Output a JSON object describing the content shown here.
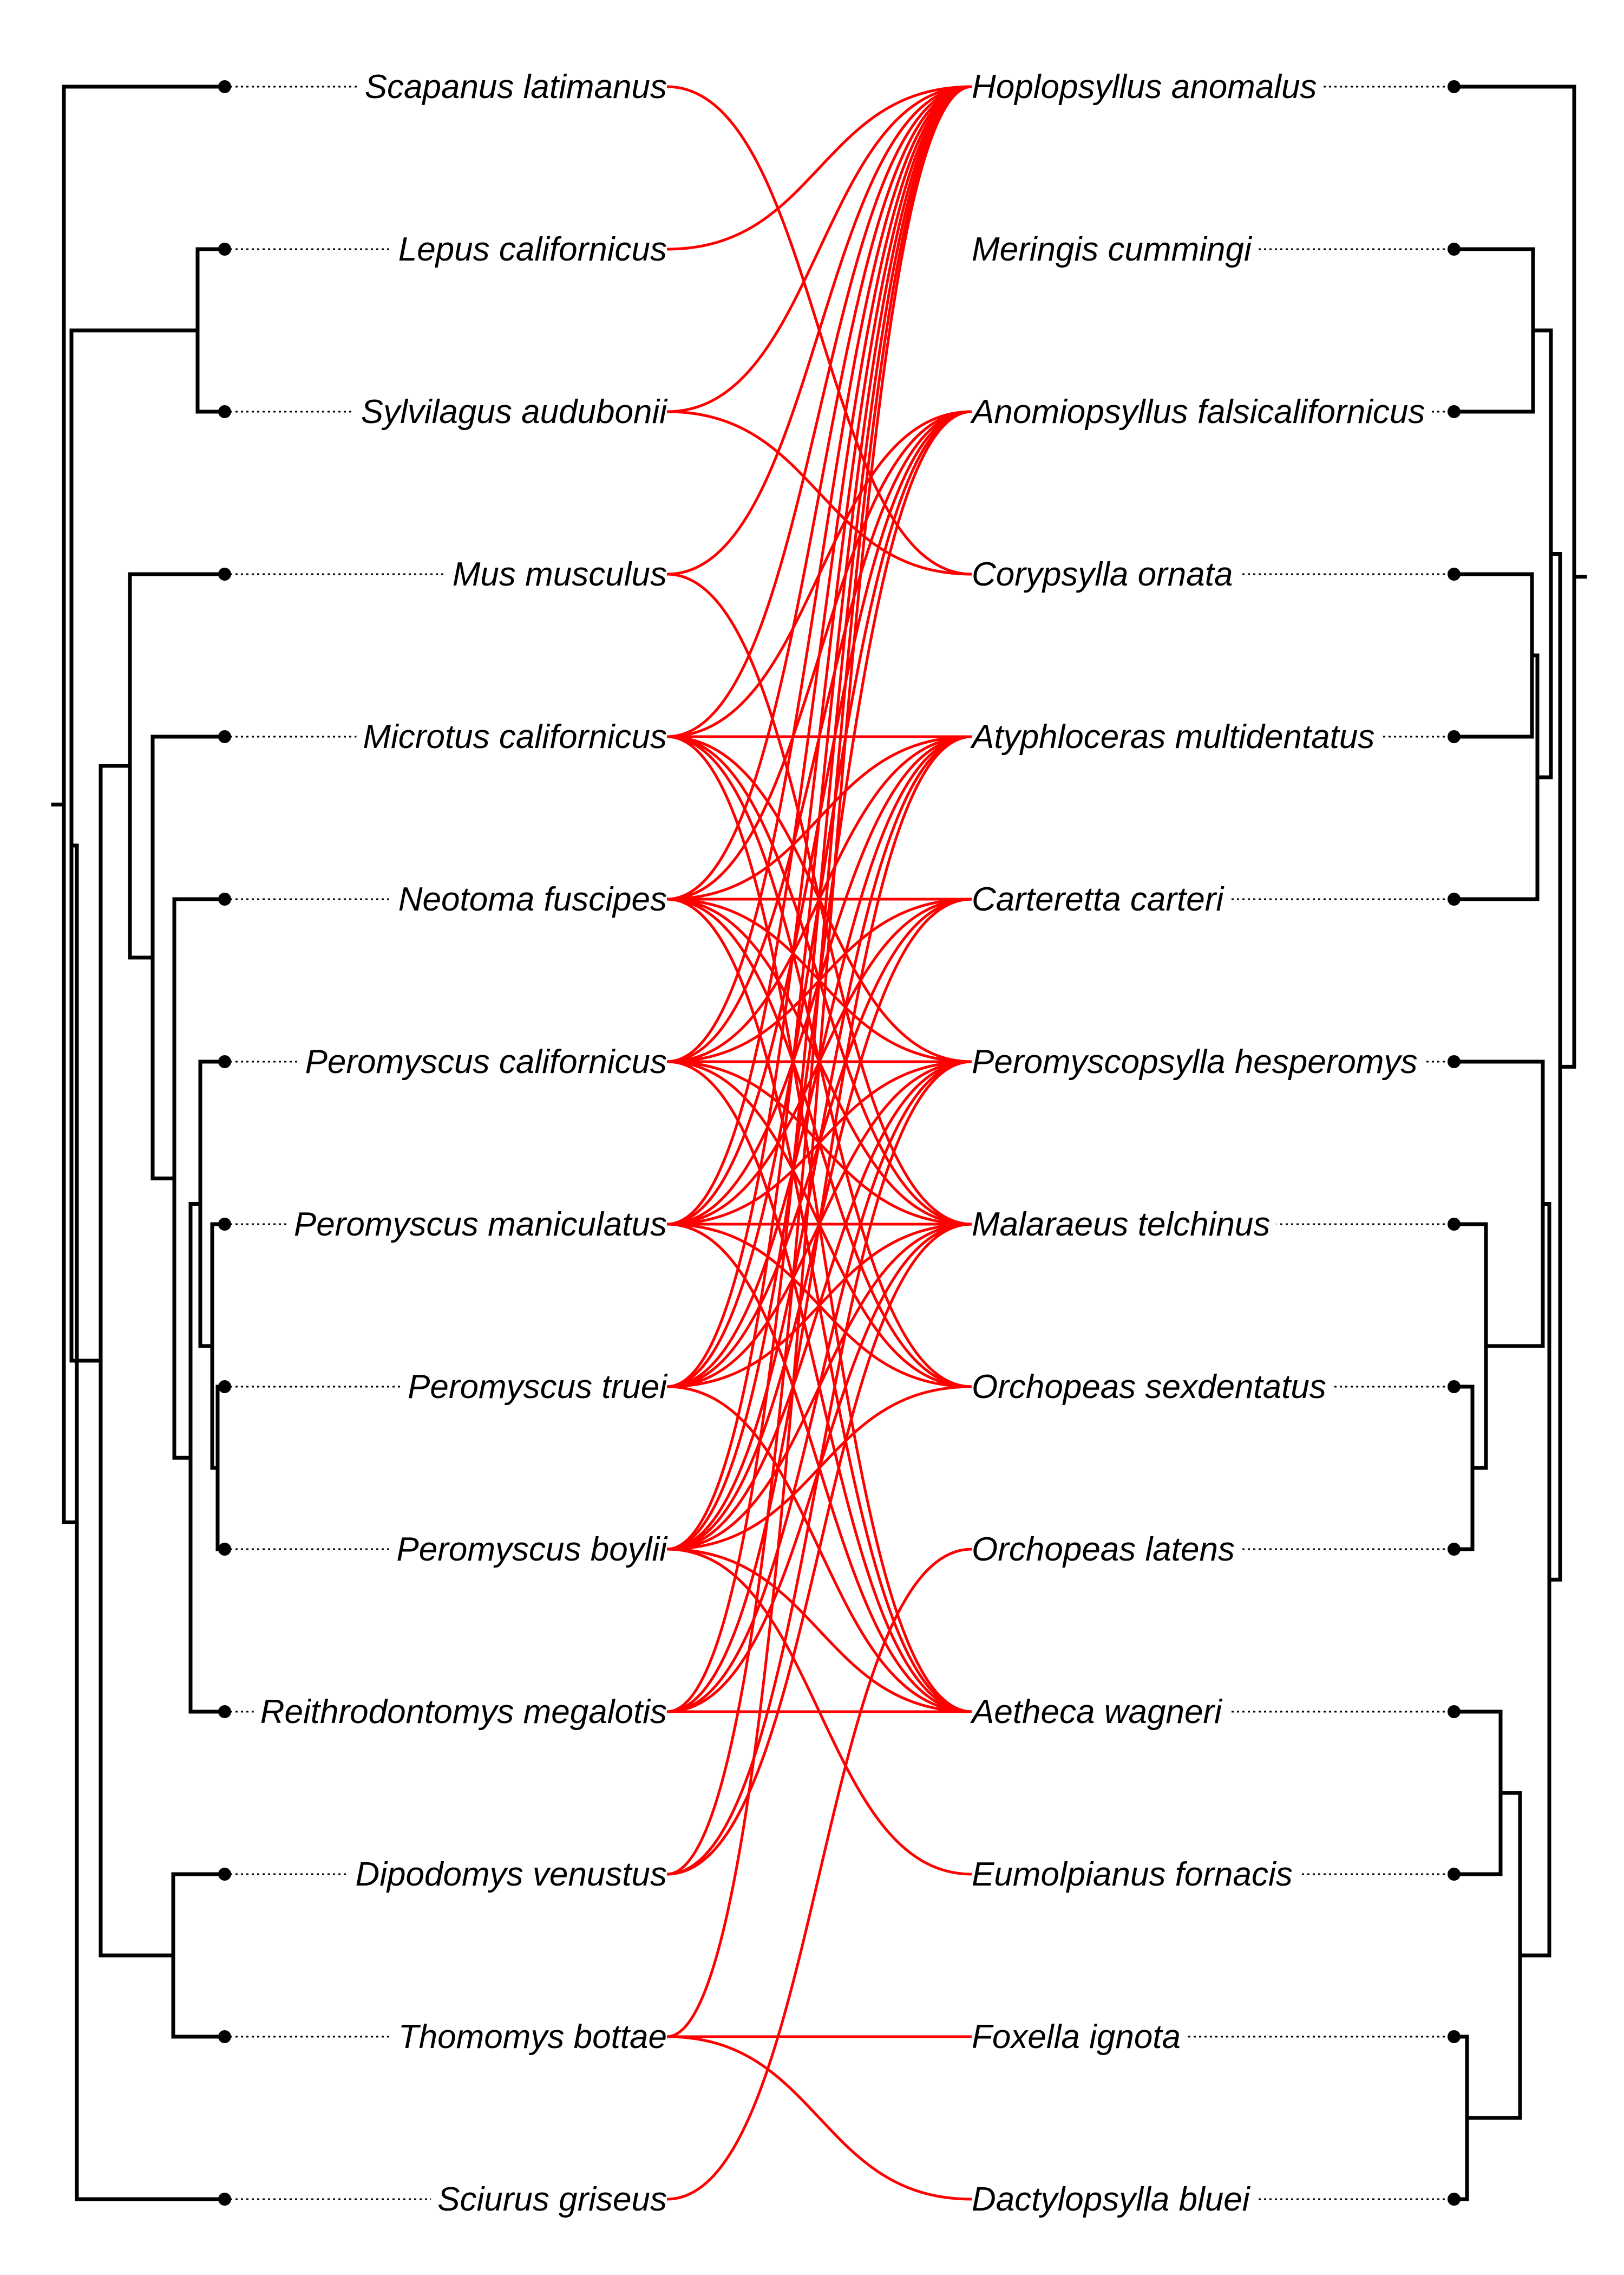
{
  "colors": {
    "link": "#ff0000",
    "tree": "#000000",
    "background": "#ffffff"
  },
  "hosts": [
    "Scapanus latimanus",
    "Lepus californicus",
    "Sylvilagus audubonii",
    "Mus musculus",
    "Microtus californicus",
    "Neotoma fuscipes",
    "Peromyscus californicus",
    "Peromyscus maniculatus",
    "Peromyscus truei",
    "Peromyscus boylii",
    "Reithrodontomys megalotis",
    "Dipodomys venustus",
    "Thomomys bottae",
    "Sciurus griseus"
  ],
  "parasites": [
    "Hoplopsyllus anomalus",
    "Meringis cummingi",
    "Anomiopsyllus falsicalifornicus",
    "Corypsylla ornata",
    "Atyphloceras multidentatus",
    "Carteretta carteri",
    "Peromyscopsylla hesperomys",
    "Malaraeus telchinus",
    "Orchopeas sexdentatus",
    "Orchopeas latens",
    "Aetheca wagneri",
    "Eumolpianus fornacis",
    "Foxella ignota",
    "Dactylopsylla bluei"
  ],
  "associations": [
    [
      0,
      3
    ],
    [
      1,
      0
    ],
    [
      2,
      0
    ],
    [
      2,
      3
    ],
    [
      3,
      0
    ],
    [
      3,
      7
    ],
    [
      4,
      0
    ],
    [
      4,
      2
    ],
    [
      4,
      4
    ],
    [
      4,
      6
    ],
    [
      4,
      7
    ],
    [
      4,
      8
    ],
    [
      4,
      10
    ],
    [
      5,
      0
    ],
    [
      5,
      2
    ],
    [
      5,
      4
    ],
    [
      5,
      5
    ],
    [
      5,
      6
    ],
    [
      5,
      7
    ],
    [
      5,
      8
    ],
    [
      5,
      10
    ],
    [
      6,
      0
    ],
    [
      6,
      2
    ],
    [
      6,
      4
    ],
    [
      6,
      5
    ],
    [
      6,
      6
    ],
    [
      6,
      7
    ],
    [
      6,
      8
    ],
    [
      6,
      10
    ],
    [
      7,
      0
    ],
    [
      7,
      2
    ],
    [
      7,
      4
    ],
    [
      7,
      5
    ],
    [
      7,
      6
    ],
    [
      7,
      7
    ],
    [
      7,
      8
    ],
    [
      7,
      10
    ],
    [
      8,
      0
    ],
    [
      8,
      2
    ],
    [
      8,
      4
    ],
    [
      8,
      5
    ],
    [
      8,
      6
    ],
    [
      8,
      7
    ],
    [
      8,
      10
    ],
    [
      9,
      0
    ],
    [
      9,
      2
    ],
    [
      9,
      4
    ],
    [
      9,
      5
    ],
    [
      9,
      6
    ],
    [
      9,
      7
    ],
    [
      9,
      8
    ],
    [
      9,
      10
    ],
    [
      9,
      11
    ],
    [
      10,
      0
    ],
    [
      10,
      4
    ],
    [
      10,
      6
    ],
    [
      10,
      7
    ],
    [
      10,
      10
    ],
    [
      11,
      0
    ],
    [
      11,
      6
    ],
    [
      11,
      7
    ],
    [
      12,
      0
    ],
    [
      12,
      12
    ],
    [
      12,
      13
    ],
    [
      13,
      9
    ]
  ]
}
